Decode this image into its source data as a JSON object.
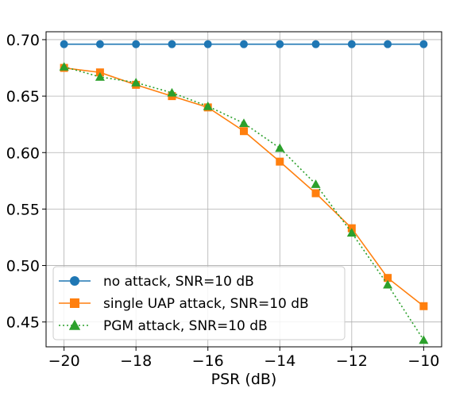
{
  "chart_data": {
    "type": "line",
    "xlabel": "PSR (dB)",
    "ylabel": "",
    "xlim": [
      -20.5,
      -9.5
    ],
    "ylim": [
      0.428,
      0.707
    ],
    "xticks": [
      -20,
      -18,
      -16,
      -14,
      -12,
      -10
    ],
    "xtick_labels": [
      "−20",
      "−18",
      "−16",
      "−14",
      "−12",
      "−10"
    ],
    "yticks": [
      0.45,
      0.5,
      0.55,
      0.6,
      0.65,
      0.7
    ],
    "ytick_labels": [
      "0.45",
      "0.50",
      "0.55",
      "0.60",
      "0.65",
      "0.70"
    ],
    "grid": true,
    "legend_position": "bottom-left",
    "x": [
      -20,
      -19,
      -18,
      -17,
      -16,
      -15,
      -14,
      -13,
      -12,
      -11,
      -10
    ],
    "series": [
      {
        "name": "no attack, SNR=10 dB",
        "color": "#1f77b4",
        "marker": "circle",
        "linestyle": "solid",
        "values": [
          0.696,
          0.696,
          0.696,
          0.696,
          0.696,
          0.696,
          0.696,
          0.696,
          0.696,
          0.696,
          0.696
        ]
      },
      {
        "name": "single UAP attack, SNR=10 dB",
        "color": "#ff7f0e",
        "marker": "square",
        "linestyle": "solid",
        "values": [
          0.675,
          0.671,
          0.66,
          0.65,
          0.64,
          0.619,
          0.592,
          0.564,
          0.533,
          0.489,
          0.464
        ]
      },
      {
        "name": "PGM attack, SNR=10 dB",
        "color": "#2ca02c",
        "marker": "triangle",
        "linestyle": "dotted",
        "values": [
          0.676,
          0.667,
          0.662,
          0.653,
          0.641,
          0.626,
          0.604,
          0.572,
          0.529,
          0.483,
          0.434
        ]
      }
    ]
  }
}
